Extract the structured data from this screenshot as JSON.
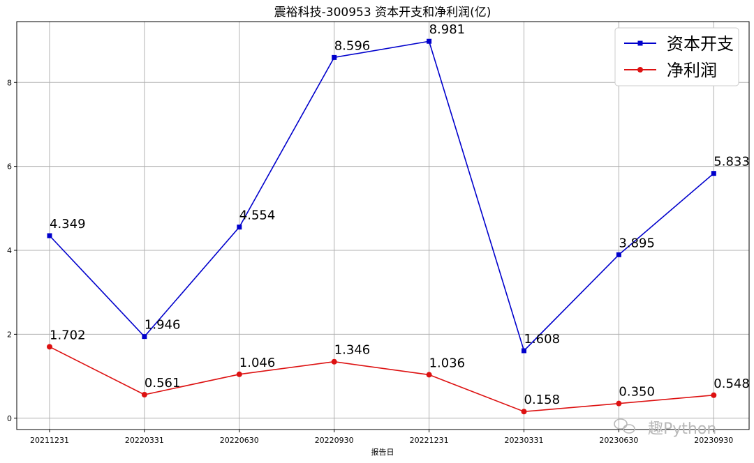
{
  "chart_data": {
    "type": "line",
    "title": "震裕科技-300953 资本开支和净利润(亿)",
    "xlabel": "报告日",
    "ylabel": "",
    "categories": [
      "20211231",
      "20220331",
      "20220630",
      "20220930",
      "20221231",
      "20230331",
      "20230630",
      "20230930"
    ],
    "ylim": [
      -0.27,
      9.45
    ],
    "yticks": [
      0,
      2,
      4,
      6,
      8
    ],
    "grid": true,
    "legend_placement": "top-right",
    "series": [
      {
        "name": "资本开支",
        "color": "#0000cc",
        "marker": "square",
        "values": [
          4.349,
          1.946,
          4.554,
          8.596,
          8.981,
          1.608,
          3.895,
          5.833
        ],
        "labels": [
          "4.349",
          "1.946",
          "4.554",
          "8.596",
          "8.981",
          "1.608",
          "3.895",
          "5.833"
        ]
      },
      {
        "name": "净利润",
        "color": "#dd1111",
        "marker": "circle",
        "values": [
          1.702,
          0.561,
          1.046,
          1.346,
          1.036,
          0.158,
          0.35,
          0.548
        ],
        "labels": [
          "1.702",
          "0.561",
          "1.046",
          "1.346",
          "1.036",
          "0.158",
          "0.350",
          "0.548"
        ]
      }
    ]
  },
  "watermark": {
    "text": "趣Python",
    "icon": "wechat-icon"
  }
}
